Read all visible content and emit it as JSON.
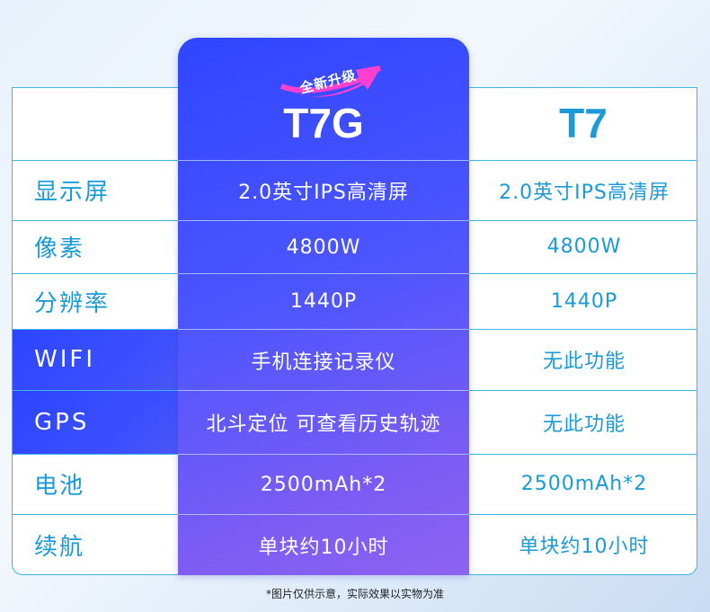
{
  "products": {
    "new": {
      "name": "T7G",
      "badge": "全新升级"
    },
    "old": {
      "name": "T7"
    }
  },
  "rows": [
    {
      "label": "显示屏",
      "t7g": "2.0英寸IPS高清屏",
      "t7": "2.0英寸IPS高清屏"
    },
    {
      "label": "像素",
      "t7g": "4800W",
      "t7": "4800W"
    },
    {
      "label": "分辨率",
      "t7g": "1440P",
      "t7": "1440P"
    },
    {
      "label": "WIFI",
      "t7g": "手机连接记录仪",
      "t7": "无此功能"
    },
    {
      "label": "GPS",
      "t7g": "北斗定位 可查看历史轨迹",
      "t7": "无此功能"
    },
    {
      "label": "电池",
      "t7g": "2500mAh*2",
      "t7": "2500mAh*2"
    },
    {
      "label": "续航",
      "t7g": "单块约10小时",
      "t7": "单块约10小时"
    }
  ],
  "footnote": "*图片仅供示意，实际效果以实物为准",
  "colors": {
    "accent": "#1a9ad6",
    "highlight": "#3c50ff",
    "badge": "#ff3fd0"
  }
}
